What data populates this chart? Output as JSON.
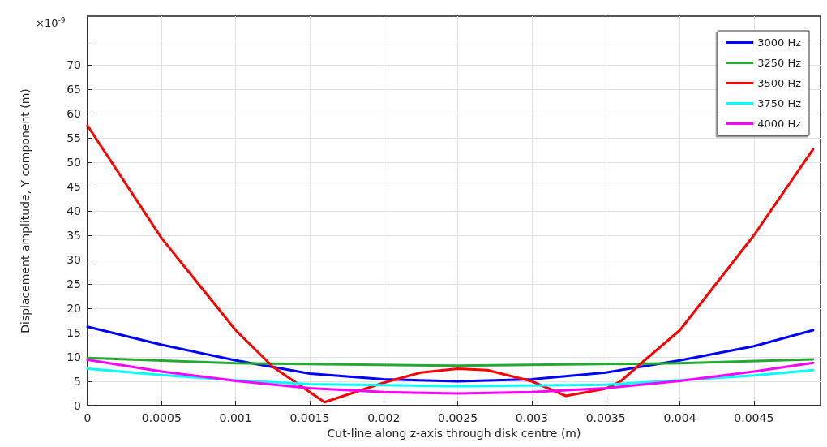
{
  "chart_data": {
    "type": "line",
    "xlabel": "Cut-line along z-axis through disk centre (m)",
    "ylabel": "Displacement amplitude, Y component (m)",
    "annotations": [
      "×10$^{-9}$"
    ],
    "xlim": [
      0,
      0.00495
    ],
    "xticks": [
      0,
      0.0005,
      0.001,
      0.0015,
      0.002,
      0.0025,
      0.003,
      0.0035,
      0.004,
      0.0045
    ],
    "ylim": [
      0,
      80
    ],
    "yticks": [
      0,
      5,
      10,
      15,
      20,
      25,
      30,
      35,
      40,
      45,
      50,
      55,
      60,
      65,
      70,
      {
        "value": 75,
        "label": null
      }
    ],
    "grid": true,
    "legend": "top right",
    "marker": "none",
    "line_style": "solid",
    "series": [
      {
        "name": "3000 Hz",
        "color": "#0000ff",
        "x": [
          0,
          0.0005,
          0.001,
          0.0015,
          0.002,
          0.0025,
          0.003,
          0.0035,
          0.004,
          0.0045,
          0.0049
        ],
        "values": [
          16.2,
          12.5,
          9.3,
          6.6,
          5.4,
          5.0,
          5.4,
          6.8,
          9.3,
          12.2,
          15.5
        ]
      },
      {
        "name": "3250 Hz",
        "color": "#22aa33",
        "x": [
          0,
          0.001,
          0.0025,
          0.004,
          0.0049
        ],
        "values": [
          9.8,
          8.7,
          8.2,
          8.7,
          9.5
        ]
      },
      {
        "name": "3500 Hz",
        "color": "#ff0000",
        "x": [
          0,
          0.0005,
          0.001,
          0.00125,
          0.0016,
          0.002,
          0.00225,
          0.0025,
          0.0027,
          0.003,
          0.00323,
          0.0035,
          0.0036,
          0.00375,
          0.004,
          0.0045,
          0.0049
        ],
        "values": [
          57.5,
          34.4,
          15.5,
          8.0,
          0.7,
          4.7,
          6.8,
          7.6,
          7.3,
          5.0,
          2.0,
          3.5,
          5.0,
          9.0,
          15.5,
          35.0,
          52.7
        ]
      },
      {
        "name": "3750 Hz",
        "color": "#00ffff",
        "x": [
          0,
          0.0005,
          0.001,
          0.0015,
          0.0025,
          0.0035,
          0.004,
          0.0045,
          0.0049
        ],
        "values": [
          7.6,
          6.3,
          5.2,
          4.4,
          4.0,
          4.3,
          5.2,
          6.2,
          7.3
        ]
      },
      {
        "name": "4000 Hz",
        "color": "#ff00ff",
        "x": [
          0,
          0.0005,
          0.001,
          0.0015,
          0.002,
          0.0025,
          0.003,
          0.0035,
          0.004,
          0.0045,
          0.0049
        ],
        "values": [
          9.4,
          7.0,
          5.1,
          3.6,
          2.8,
          2.5,
          2.8,
          3.6,
          5.1,
          7.0,
          8.8
        ]
      }
    ]
  }
}
